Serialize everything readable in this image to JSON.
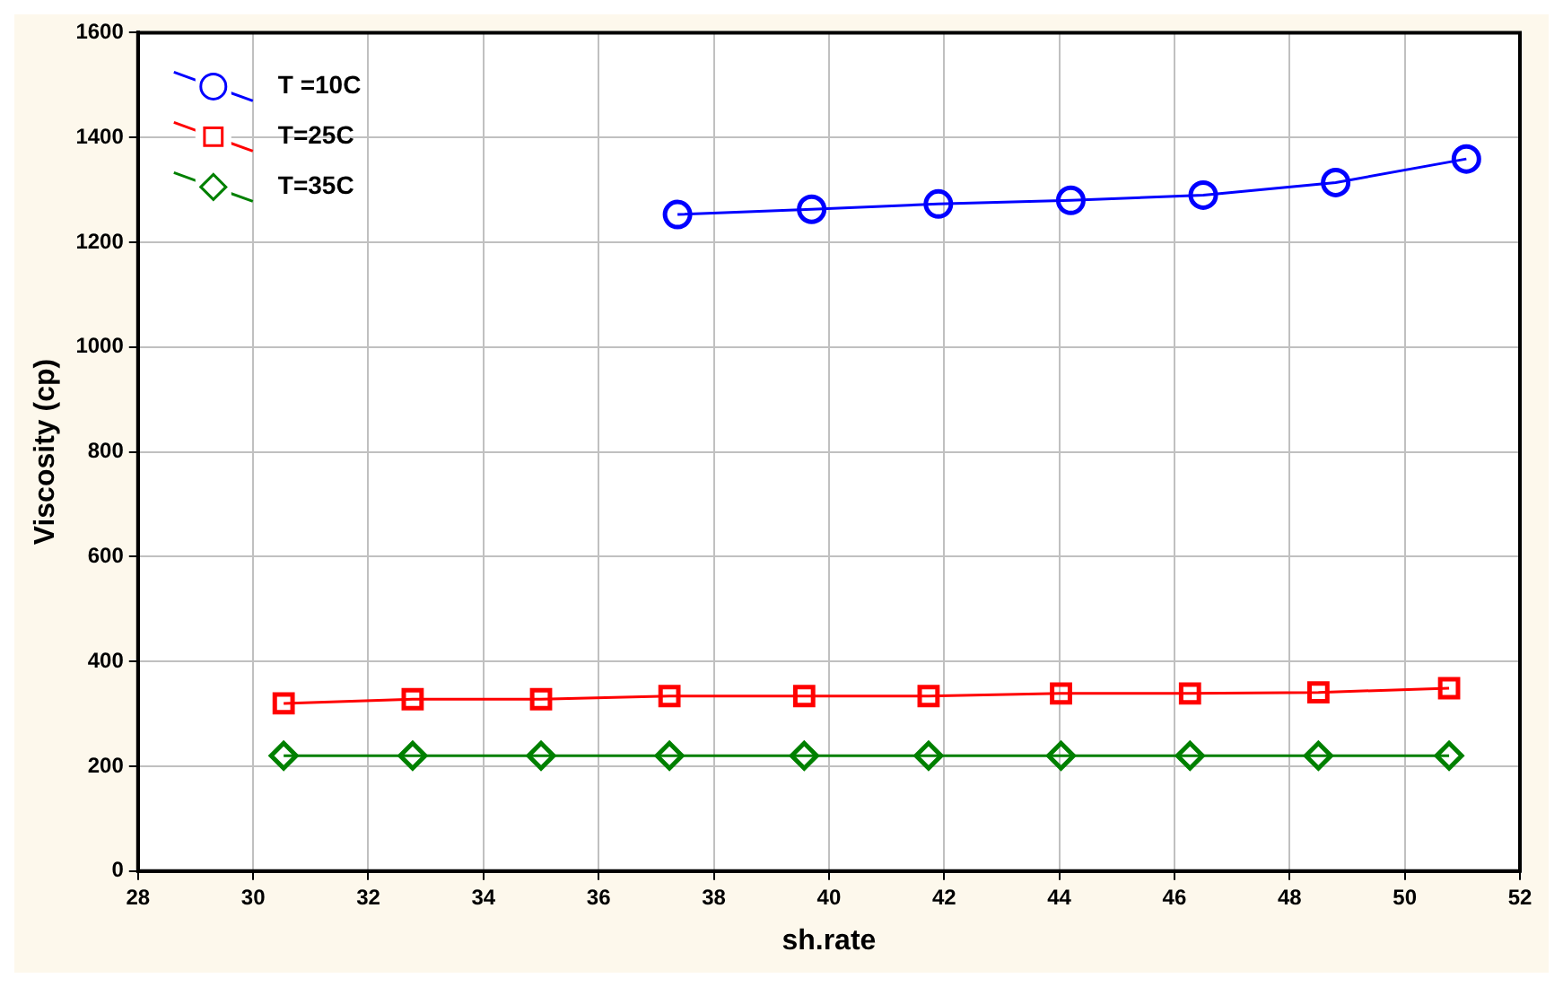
{
  "chart_data": {
    "type": "line",
    "xlabel": "sh.rate",
    "ylabel": "Viscosity (cp)",
    "xlim": [
      28,
      52
    ],
    "xticks": [
      28,
      30,
      32,
      34,
      36,
      38,
      40,
      42,
      44,
      46,
      48,
      50,
      52
    ],
    "ylim": [
      0,
      1600
    ],
    "yticks": [
      0,
      200,
      400,
      600,
      800,
      1000,
      1200,
      1400,
      1600
    ],
    "grid": true,
    "legend": "top left",
    "line_style": "solid",
    "series": [
      {
        "name": "T =10C",
        "color": "#0000ff",
        "marker": "circle",
        "x": [
          37.37,
          39.7,
          41.9,
          44.2,
          46.5,
          48.8,
          51.07
        ],
        "values": [
          1253,
          1263,
          1273,
          1280,
          1290,
          1314,
          1359
        ]
      },
      {
        "name": "T=25C",
        "color": "#ff0000",
        "marker": "square",
        "x": [
          30.53,
          32.77,
          35.0,
          37.23,
          39.57,
          41.73,
          44.03,
          46.27,
          48.5,
          50.77
        ],
        "values": [
          320,
          328,
          328,
          334,
          334,
          334,
          339,
          339,
          341,
          349
        ]
      },
      {
        "name": "T=35C",
        "color": "#008000",
        "marker": "diamond",
        "x": [
          30.53,
          32.77,
          35.0,
          37.23,
          39.57,
          41.73,
          44.03,
          46.27,
          48.5,
          50.77
        ],
        "values": [
          220,
          220,
          220,
          220,
          220,
          220,
          220,
          220,
          220,
          220
        ]
      }
    ]
  }
}
